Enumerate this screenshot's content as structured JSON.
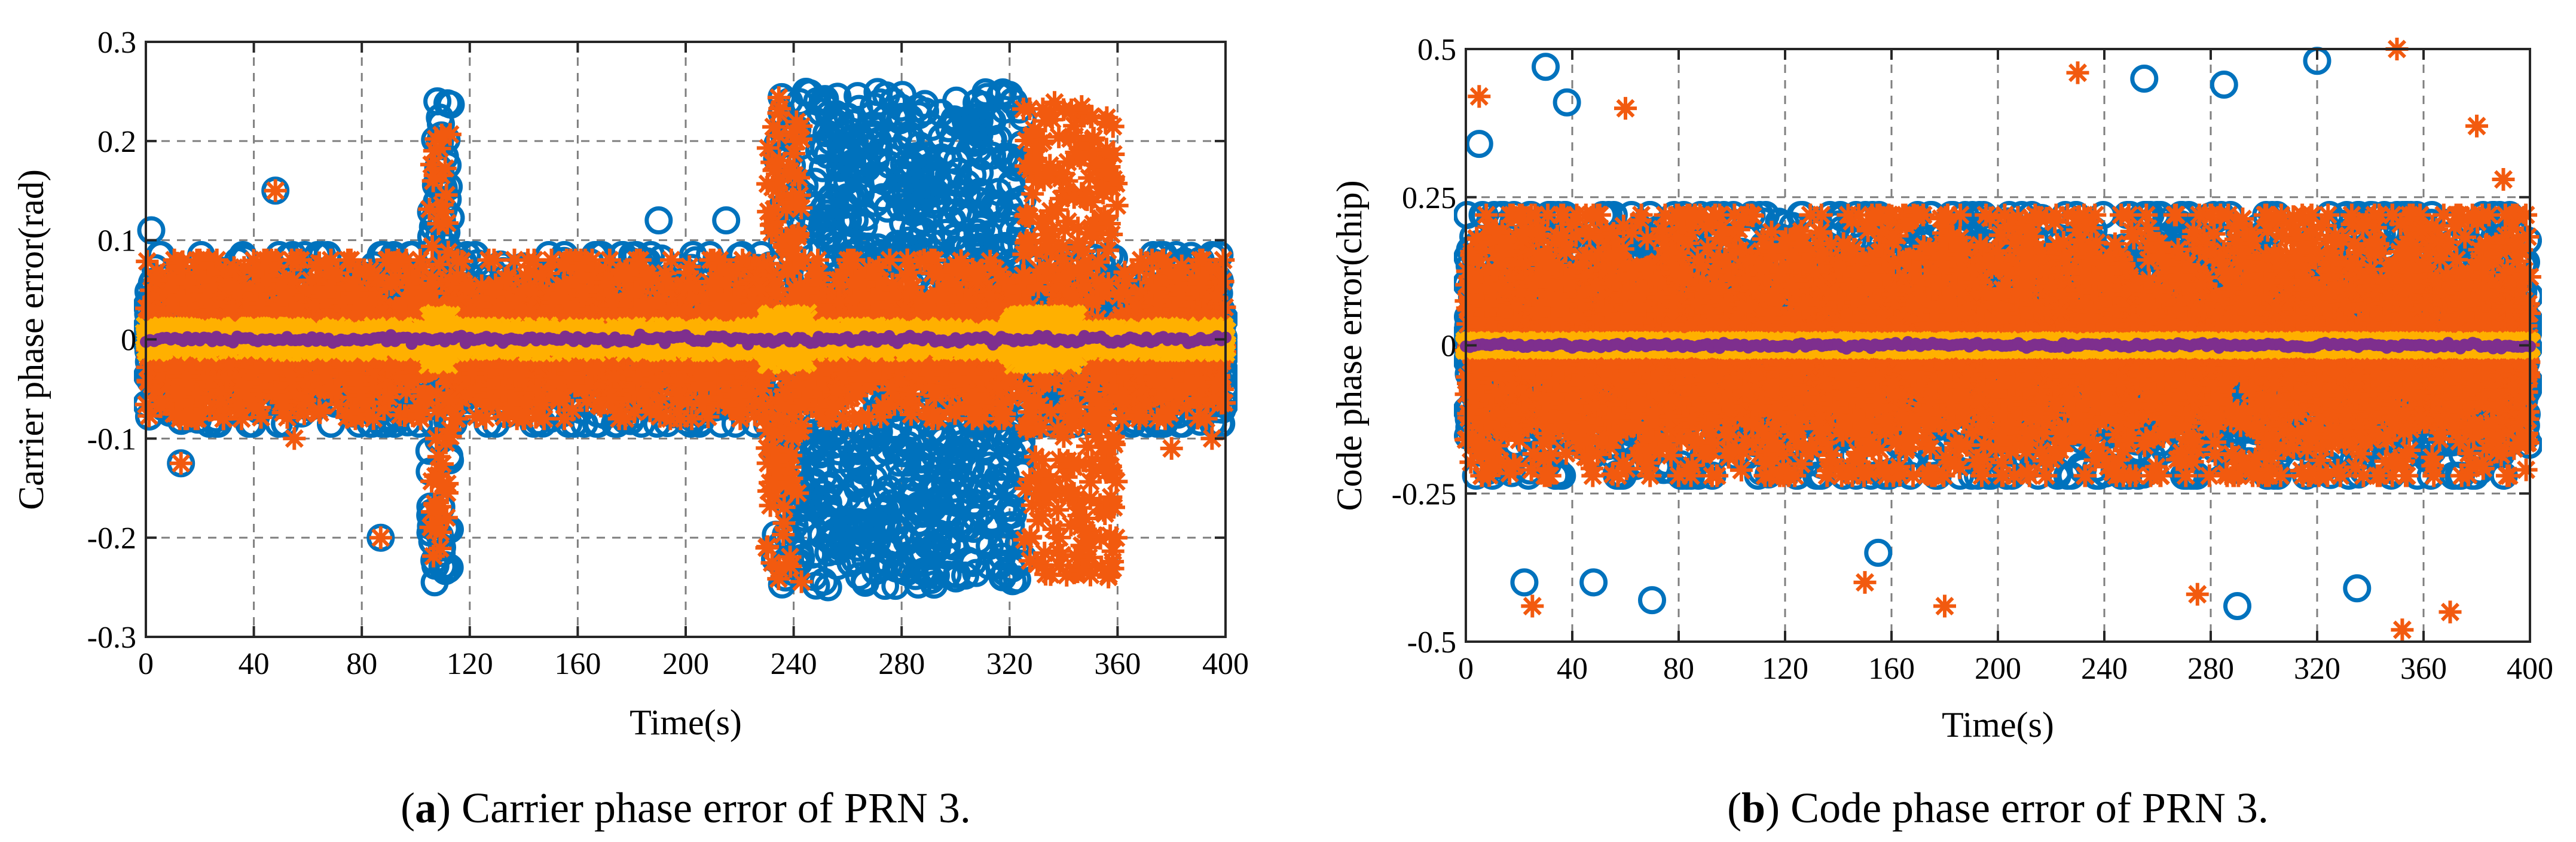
{
  "colors": {
    "series_circle": "#0072BD",
    "series_star": "#F25A0F",
    "series_x": "#FFB000",
    "series_dot": "#7E2F8E",
    "background": "#FFFFFF"
  },
  "chart_data": [
    {
      "id": "a",
      "type": "scatter",
      "title": "",
      "xlabel": "Time(s)",
      "ylabel": "Carrier phase error(rad)",
      "xlim": [
        0,
        400
      ],
      "ylim": [
        -0.3,
        0.3
      ],
      "grid": true,
      "x_ticks": [
        0,
        40,
        80,
        120,
        160,
        200,
        240,
        280,
        320,
        360,
        400
      ],
      "x_tick_labels": [
        "0",
        "40",
        "80",
        "120",
        "160",
        "200",
        "240",
        "280",
        "320",
        "360",
        "400"
      ],
      "y_ticks": [
        -0.3,
        -0.2,
        -0.1,
        0,
        0.1,
        0.2,
        0.3
      ],
      "y_tick_labels": [
        "-0.3",
        "-0.2",
        "-0.1",
        "0",
        "0.1",
        "0.2",
        "0.3"
      ],
      "caption_label": "a",
      "caption_text": ") Carrier phase error of PRN 3.",
      "series": [
        {
          "name": "circle-marker series",
          "marker": "circle",
          "x_range": [
            0,
            400
          ],
          "core_spread": 0.085,
          "bursts": [
            {
              "x_range": [
                233,
                325
              ],
              "spread": 0.25
            },
            {
              "x_range": [
                105,
                113
              ],
              "spread": 0.24
            }
          ],
          "outliers": [
            [
              2,
              0.11
            ],
            [
              13,
              -0.125
            ],
            [
              48,
              0.15
            ],
            [
              87,
              -0.2
            ],
            [
              107,
              -0.245
            ],
            [
              108,
              0.24
            ],
            [
              190,
              0.12
            ],
            [
              215,
              0.12
            ]
          ]
        },
        {
          "name": "star-marker series",
          "marker": "star",
          "x_range": [
            0,
            400
          ],
          "core_spread": 0.08,
          "bursts": [
            {
              "x_range": [
                230,
                243
              ],
              "spread": 0.25
            },
            {
              "x_range": [
                325,
                360
              ],
              "spread": 0.24
            },
            {
              "x_range": [
                105,
                113
              ],
              "spread": 0.22
            }
          ],
          "outliers": [
            [
              13,
              -0.125
            ],
            [
              48,
              0.15
            ],
            [
              55,
              -0.1
            ],
            [
              87,
              -0.2
            ],
            [
              380,
              -0.11
            ],
            [
              395,
              -0.1
            ]
          ]
        },
        {
          "name": "x-marker series",
          "marker": "x",
          "x_range": [
            0,
            400
          ],
          "core_spread": 0.012,
          "bursts": [
            {
              "x_range": [
                105,
                113
              ],
              "spread": 0.025
            },
            {
              "x_range": [
                230,
                245
              ],
              "spread": 0.025
            },
            {
              "x_range": [
                320,
                345
              ],
              "spread": 0.025
            }
          ],
          "outliers": []
        },
        {
          "name": "dot-marker series",
          "marker": "dot",
          "x_range": [
            0,
            400
          ],
          "core_spread": 0.002,
          "bursts": [],
          "outliers": []
        }
      ]
    },
    {
      "id": "b",
      "type": "scatter",
      "title": "",
      "xlabel": "Time(s)",
      "ylabel": "Code phase error(chip)",
      "xlim": [
        0,
        400
      ],
      "ylim": [
        -0.5,
        0.5
      ],
      "grid": true,
      "x_ticks": [
        0,
        40,
        80,
        120,
        160,
        200,
        240,
        280,
        320,
        360,
        400
      ],
      "x_tick_labels": [
        "0",
        "40",
        "80",
        "120",
        "160",
        "200",
        "240",
        "280",
        "320",
        "360",
        "400"
      ],
      "y_ticks": [
        -0.5,
        -0.25,
        0,
        0.25,
        0.5
      ],
      "y_tick_labels": [
        "-0.5",
        "-0.25",
        "0",
        "0.25",
        "0.5"
      ],
      "caption_label": "b",
      "caption_text": ") Code phase error of PRN 3.",
      "series": [
        {
          "name": "circle-marker series",
          "marker": "circle",
          "x_range": [
            0,
            400
          ],
          "core_spread": 0.22,
          "bursts": [],
          "outliers": [
            [
              5,
              0.34
            ],
            [
              22,
              -0.4
            ],
            [
              30,
              0.47
            ],
            [
              38,
              0.41
            ],
            [
              48,
              -0.4
            ],
            [
              70,
              -0.43
            ],
            [
              155,
              -0.35
            ],
            [
              255,
              0.45
            ],
            [
              285,
              0.44
            ],
            [
              290,
              -0.44
            ],
            [
              320,
              0.48
            ],
            [
              335,
              -0.41
            ]
          ]
        },
        {
          "name": "star-marker series",
          "marker": "star",
          "x_range": [
            0,
            400
          ],
          "core_spread": 0.22,
          "bursts": [],
          "outliers": [
            [
              5,
              0.42
            ],
            [
              25,
              -0.44
            ],
            [
              60,
              0.4
            ],
            [
              150,
              -0.4
            ],
            [
              180,
              -0.44
            ],
            [
              230,
              0.46
            ],
            [
              275,
              -0.42
            ],
            [
              350,
              0.5
            ],
            [
              352,
              -0.48
            ],
            [
              370,
              -0.45
            ],
            [
              380,
              0.37
            ],
            [
              390,
              0.28
            ]
          ]
        },
        {
          "name": "x-marker series",
          "marker": "x",
          "x_range": [
            0,
            400
          ],
          "core_spread": 0.006,
          "bursts": [],
          "outliers": []
        },
        {
          "name": "dot-marker series",
          "marker": "dot",
          "x_range": [
            0,
            400
          ],
          "core_spread": 0.002,
          "bursts": [],
          "outliers": []
        }
      ]
    }
  ]
}
